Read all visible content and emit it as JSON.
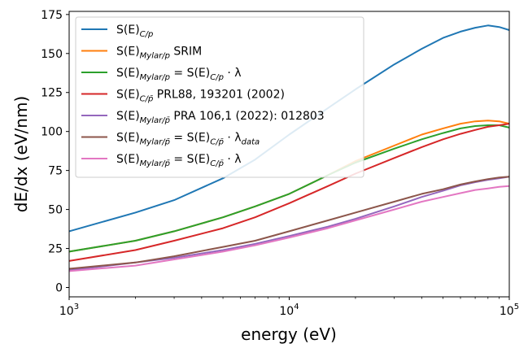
{
  "chart_data": {
    "type": "line",
    "xlabel": "energy (eV)",
    "ylabel": "dE/dx (eV/nm)",
    "xscale": "log",
    "xlim": [
      1000,
      100000
    ],
    "ylim": [
      -6,
      177
    ],
    "x_ticks": [
      {
        "value": 1000,
        "base": "10",
        "exp": "3"
      },
      {
        "value": 10000,
        "base": "10",
        "exp": "4"
      },
      {
        "value": 100000,
        "base": "10",
        "exp": "5"
      }
    ],
    "y_ticks": [
      0,
      25,
      50,
      75,
      100,
      125,
      150,
      175
    ],
    "grid": false,
    "legend_position": "top-left",
    "x": [
      1000,
      2000,
      3000,
      5000,
      7000,
      10000,
      15000,
      20000,
      30000,
      40000,
      50000,
      60000,
      70000,
      80000,
      90000,
      100000
    ],
    "series": [
      {
        "name": "S(E)_C/p",
        "color": "#1f77b4",
        "values": [
          36,
          48,
          56,
          70,
          82,
          98,
          115,
          127,
          143,
          153,
          160,
          164,
          166.5,
          168,
          167,
          165
        ]
      },
      {
        "name": "S(E)_Mylar/p SRIM",
        "color": "#ff7f0e",
        "values": [
          23,
          30,
          36,
          45,
          52,
          60,
          72,
          81,
          91,
          98,
          102,
          105,
          106.5,
          107,
          106.5,
          105
        ]
      },
      {
        "name": "S(E)_Mylar/p = S(E)_C/p · λ",
        "color": "#2ca02c",
        "values": [
          23,
          30,
          36,
          45,
          52,
          60,
          72,
          80,
          89,
          95,
          99,
          102,
          103.5,
          104,
          104,
          102.5
        ]
      },
      {
        "name": "S(E)_C/p̄ PRL88, 193201 (2002)",
        "color": "#d62728",
        "values": [
          17,
          24,
          30,
          38,
          45,
          54,
          65,
          73,
          83,
          90,
          95,
          98.5,
          101,
          103,
          104,
          105
        ]
      },
      {
        "name": "S(E)_Mylar/p̄ PRA 106,1 (2022): 012803",
        "color": "#9467bd",
        "values": [
          11,
          16,
          19,
          24,
          28,
          33,
          39,
          44,
          52,
          58,
          62,
          65.5,
          67.5,
          69,
          70,
          71
        ]
      },
      {
        "name": "S(E)_Mylar/p̄ = S(E)_C/p̄ · λ_data",
        "color": "#8c564b",
        "values": [
          12,
          16,
          20,
          26,
          30,
          36,
          43,
          48,
          55,
          60,
          63,
          66,
          68,
          69.5,
          70.5,
          71
        ]
      },
      {
        "name": "S(E)_Mylar/p̄ = S(E)_C/p̄ · λ",
        "color": "#e377c2",
        "values": [
          10.5,
          14,
          18,
          23,
          27,
          32,
          38,
          43,
          50,
          55,
          58,
          60.5,
          62.5,
          63.5,
          64.5,
          65
        ]
      }
    ]
  },
  "legend": [
    {
      "text": "S(E)_C/p",
      "color": "#1f77b4"
    },
    {
      "text": "S(E)_Mylar/p SRIM",
      "color": "#ff7f0e"
    },
    {
      "text": "S(E)_Mylar/p = S(E)_C/p · λ",
      "color": "#2ca02c"
    },
    {
      "text": "S(E)_C/p̄ PRL88, 193201 (2002)",
      "color": "#d62728"
    },
    {
      "text": "S(E)_Mylar/p̄ PRA 106,1 (2022): 012803",
      "color": "#9467bd"
    },
    {
      "text": "S(E)_Mylar/p̄ = S(E)_C/p̄ · λ_data",
      "color": "#8c564b"
    },
    {
      "text": "S(E)_Mylar/p̄ = S(E)_C/p̄ · λ",
      "color": "#e377c2"
    }
  ]
}
